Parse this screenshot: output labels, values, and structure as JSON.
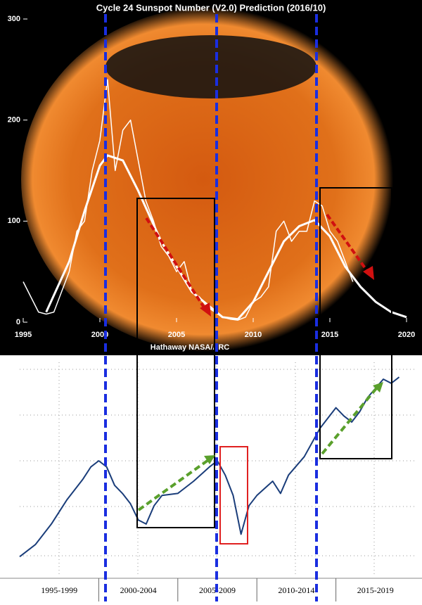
{
  "chart_data": [
    {
      "type": "line",
      "title": "Cycle 24 Sunspot Number (V2.0) Prediction (2016/10)",
      "credit": "Hathaway NASA/ARC",
      "xlim": [
        1995,
        2020
      ],
      "xticks": [
        1995,
        2000,
        2005,
        2010,
        2015,
        2020
      ],
      "ylim": [
        0,
        300
      ],
      "yticks": [
        0,
        100,
        200,
        300
      ],
      "series": [
        {
          "color": "#ffffff",
          "width": 1.5,
          "x": [
            1995.0,
            1995.5,
            1996.0,
            1996.5,
            1997.0,
            1997.5,
            1998.0,
            1998.5,
            1999.0,
            1999.5,
            2000.0,
            2000.5,
            2001.0,
            2001.5,
            2002.0,
            2002.5,
            2003.0,
            2003.5,
            2004.0,
            2004.5,
            2005.0,
            2005.5,
            2006.0,
            2006.5,
            2007.0,
            2007.5,
            2008.0,
            2008.5,
            2009.0,
            2009.5,
            2010.0,
            2010.5,
            2011.0,
            2011.5,
            2012.0,
            2012.5,
            2013.0,
            2013.5,
            2014.0,
            2014.5,
            2015.0,
            2015.5,
            2016.0,
            2016.5
          ],
          "values": [
            40,
            25,
            10,
            8,
            10,
            30,
            50,
            90,
            100,
            150,
            180,
            240,
            150,
            190,
            200,
            160,
            120,
            100,
            75,
            65,
            50,
            60,
            30,
            25,
            15,
            10,
            5,
            3,
            2,
            5,
            20,
            25,
            35,
            90,
            100,
            80,
            90,
            90,
            120,
            115,
            90,
            80,
            60,
            40
          ]
        },
        {
          "color": "#ffffff",
          "width": 3,
          "x": [
            1996.5,
            1998,
            1999,
            2000,
            2000.5,
            2001.5,
            2002.5,
            2004,
            2006,
            2008,
            2009,
            2010,
            2011,
            2012,
            2013,
            2014,
            2015,
            2016,
            2017,
            2018,
            2019,
            2020
          ],
          "values": [
            10,
            60,
            110,
            155,
            165,
            160,
            130,
            80,
            30,
            5,
            3,
            20,
            50,
            80,
            95,
            101,
            85,
            55,
            35,
            20,
            10,
            5
          ]
        }
      ]
    },
    {
      "type": "line",
      "categories": [
        "1995-1999",
        "2000-2004",
        "2005-2009",
        "2010-2014",
        "2015-2019"
      ],
      "xlim": [
        1995,
        2020
      ],
      "ylim": [
        0,
        100
      ],
      "series": [
        {
          "color": "#1a3d7a",
          "width": 2,
          "x": [
            1995,
            1996,
            1997,
            1998,
            1999,
            1999.5,
            2000,
            2000.5,
            2001,
            2001.5,
            2002,
            2002.5,
            2003,
            2003.5,
            2004,
            2005,
            2006,
            2007,
            2007.5,
            2008,
            2008.5,
            2009,
            2009.5,
            2010,
            2011,
            2011.5,
            2012,
            2013,
            2014,
            2015,
            2015.5,
            2016,
            2016.5,
            2017,
            2018,
            2018.5,
            2019
          ],
          "values": [
            3,
            9,
            19,
            31,
            41,
            47,
            50,
            47,
            38,
            34,
            29,
            21,
            19,
            28,
            33,
            34,
            40,
            47,
            50,
            43,
            33,
            14,
            28,
            33,
            40,
            34,
            43,
            52,
            66,
            76,
            72,
            69,
            74,
            81,
            90,
            88,
            91
          ]
        }
      ]
    }
  ]
}
